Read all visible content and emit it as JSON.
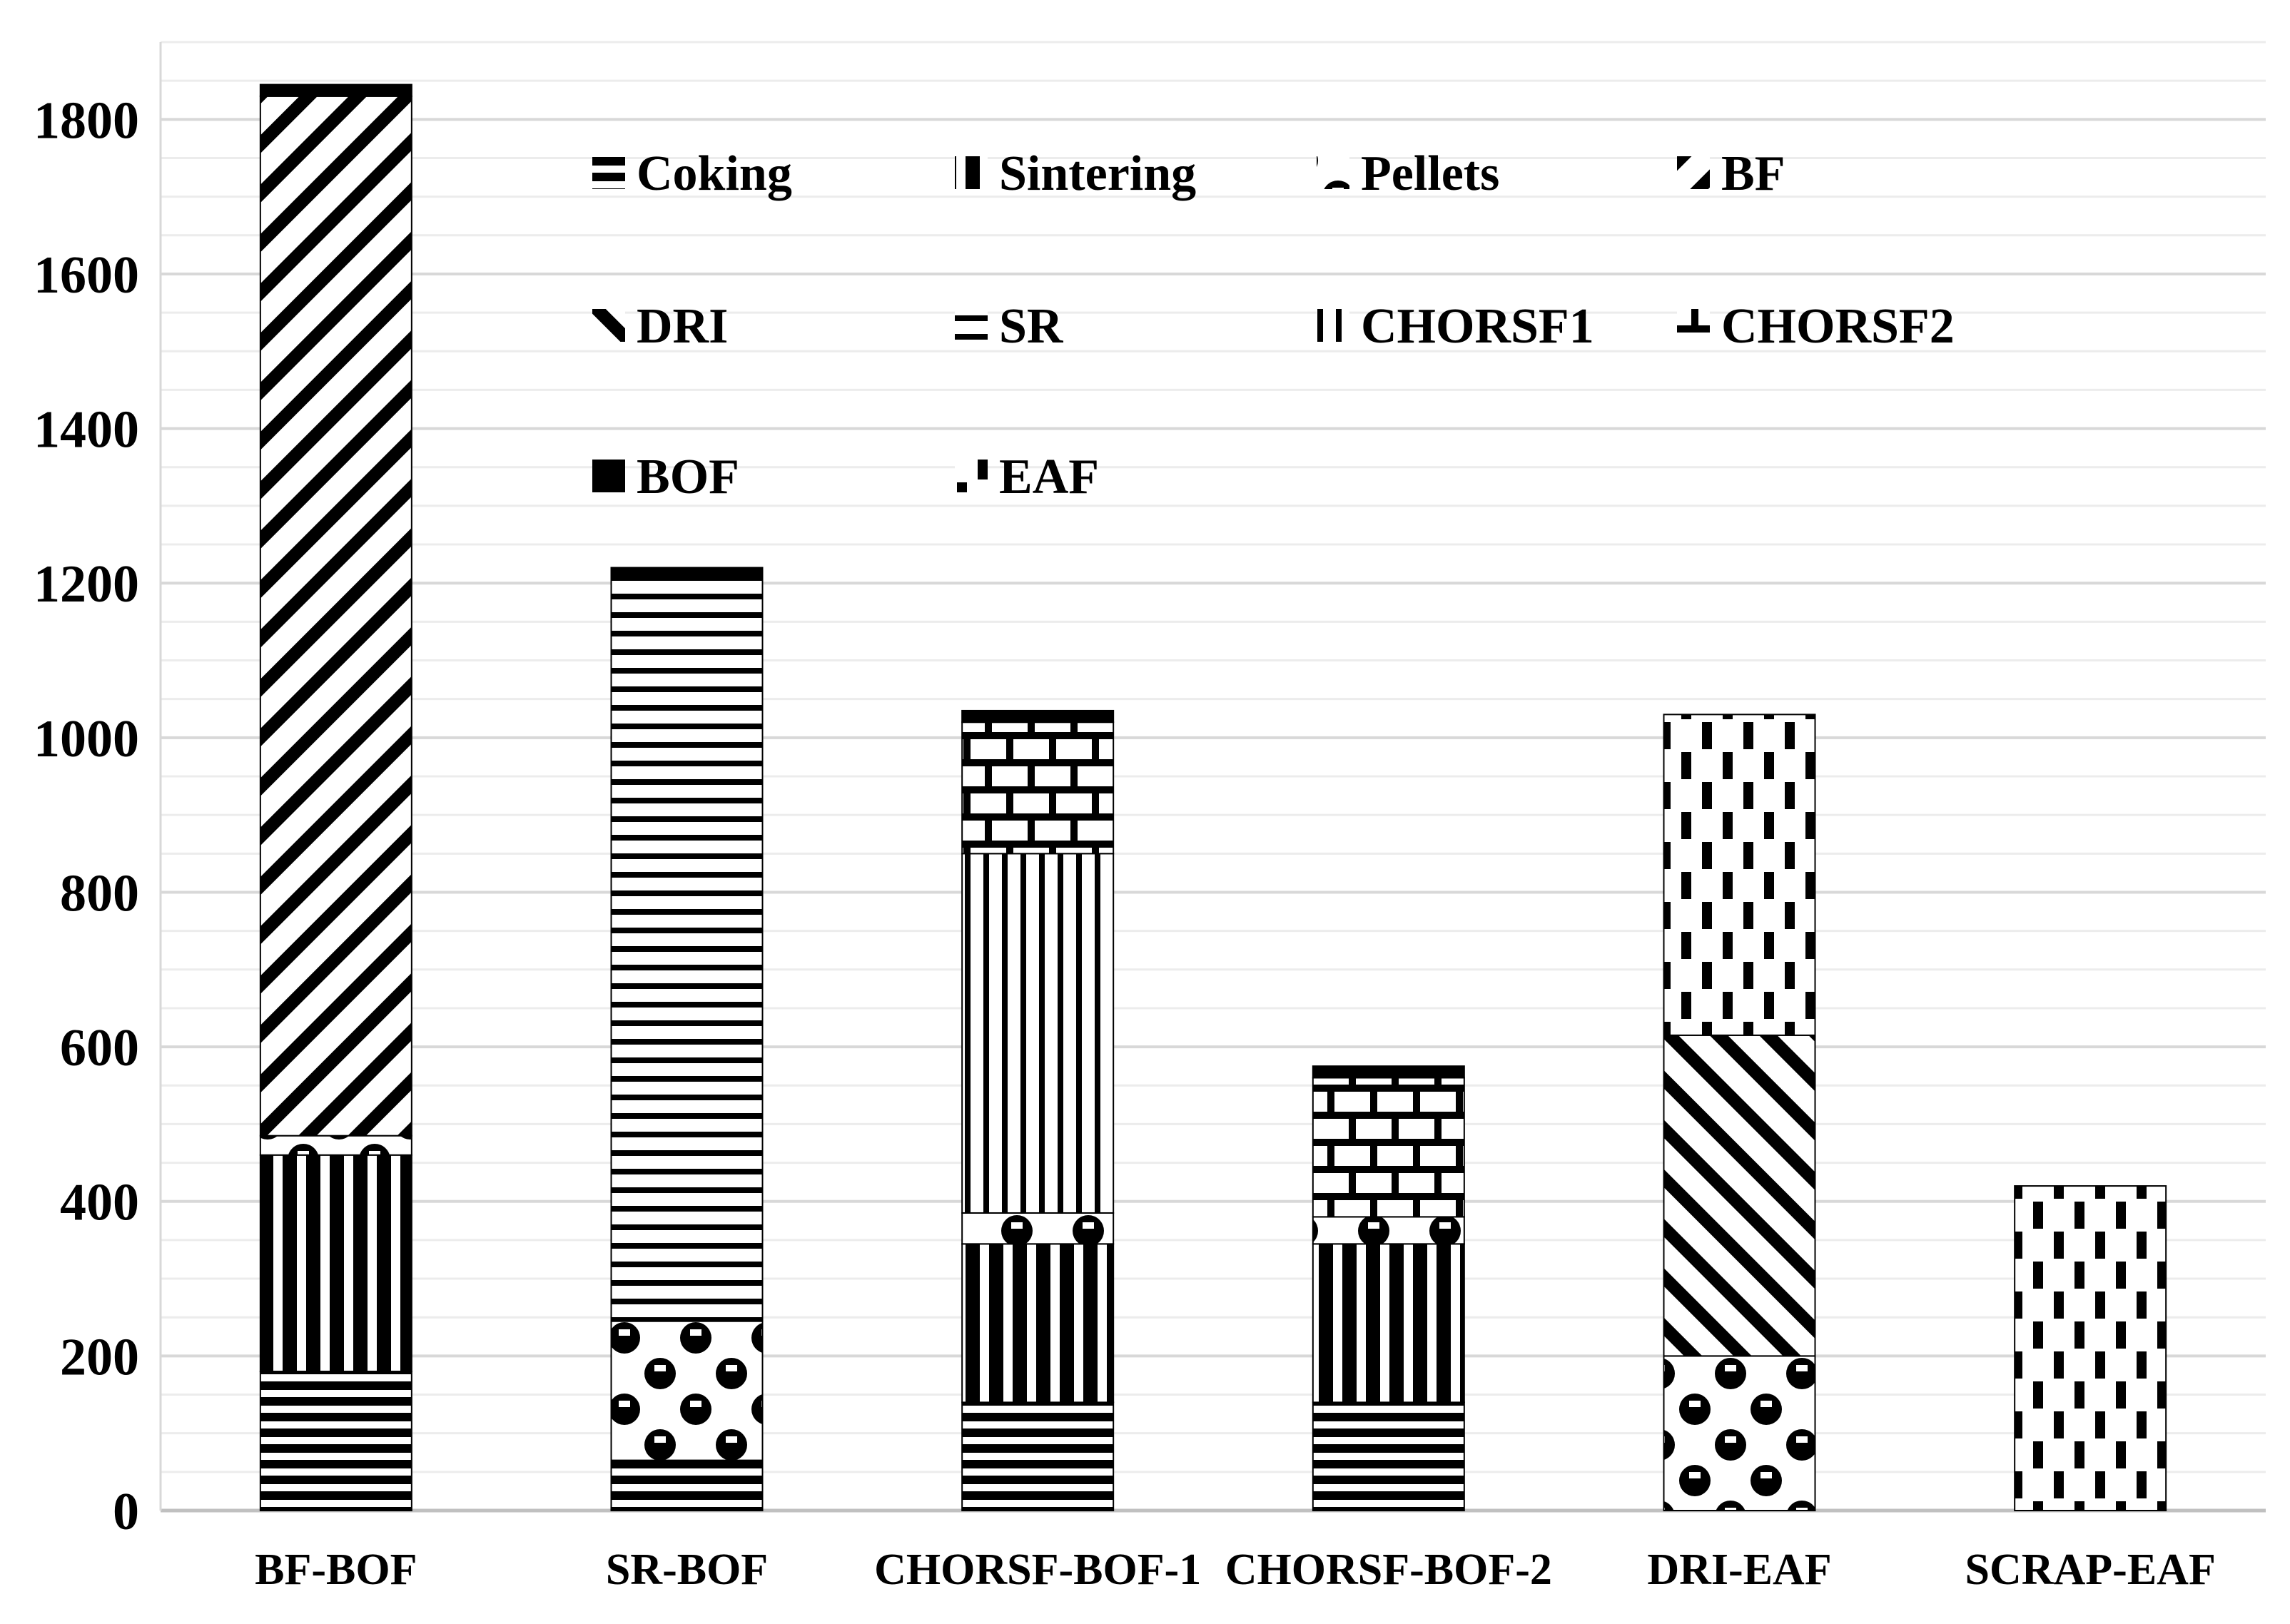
{
  "figure": {
    "background": "#ffffff",
    "text_color": "#000000",
    "gridline_minor_color": "#ececec",
    "gridline_major_color": "#d8d8d8",
    "zero_axis_color": "#c0c0c0",
    "bar_fill_color": "#000000",
    "bar_background": "#ffffff"
  },
  "chart_data": {
    "type": "bar",
    "stacked": true,
    "title": "",
    "xlabel": "",
    "ylabel": "",
    "grid": true,
    "legend_position": "top-inside",
    "legend_columns": 4,
    "ylim": [
      0,
      1900
    ],
    "y_major_step": 200,
    "y_minor_step": 50,
    "y_ticks": [
      0,
      200,
      400,
      600,
      800,
      1000,
      1200,
      1400,
      1600,
      1800
    ],
    "categories": [
      "BF-BOF",
      "SR-BOF",
      "CHORSF-BOF-1",
      "CHORSF-BOF-2",
      "DRI-EAF",
      "SCRAP-EAF"
    ],
    "series": [
      {
        "name": "Coking",
        "pattern": "h-stripes-thick",
        "values": [
          180,
          65,
          140,
          140,
          0,
          0
        ]
      },
      {
        "name": "Sintering",
        "pattern": "v-stripes-thick",
        "values": [
          280,
          0,
          205,
          205,
          0,
          0
        ]
      },
      {
        "name": "Pellets",
        "pattern": "balls",
        "values": [
          25,
          180,
          40,
          35,
          200,
          0
        ]
      },
      {
        "name": "BF",
        "pattern": "diag-up",
        "values": [
          1345,
          0,
          0,
          0,
          0,
          0
        ]
      },
      {
        "name": "DRI",
        "pattern": "diag-down",
        "values": [
          0,
          0,
          0,
          0,
          415,
          0
        ]
      },
      {
        "name": "SR",
        "pattern": "h-lines-thin",
        "values": [
          0,
          960,
          0,
          0,
          0,
          0
        ]
      },
      {
        "name": "CHORSF1",
        "pattern": "v-lines-thin",
        "values": [
          0,
          0,
          465,
          0,
          0,
          0
        ]
      },
      {
        "name": "CHORSF2",
        "pattern": "brick",
        "values": [
          0,
          0,
          170,
          180,
          0,
          0
        ]
      },
      {
        "name": "BOF",
        "pattern": "solid",
        "values": [
          15,
          15,
          15,
          15,
          0,
          0
        ]
      },
      {
        "name": "EAF",
        "pattern": "v-dashes",
        "values": [
          0,
          0,
          0,
          0,
          415,
          420
        ]
      }
    ],
    "totals": [
      1845,
      1220,
      1035,
      575,
      1030,
      420
    ]
  }
}
